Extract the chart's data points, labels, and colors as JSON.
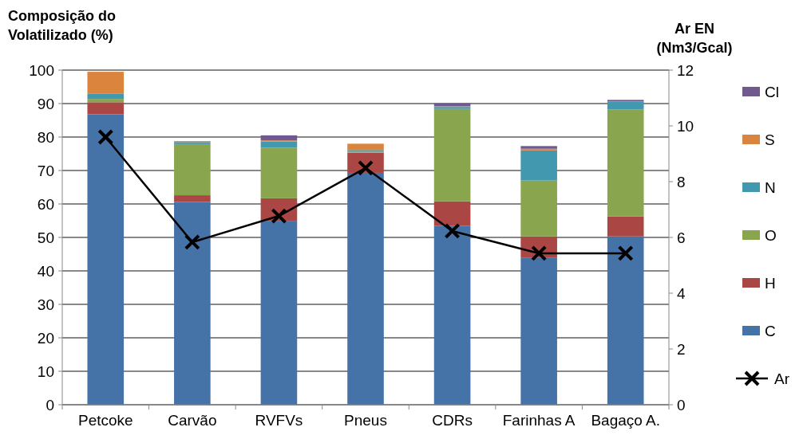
{
  "chart_data": {
    "type": "bar",
    "stacked": true,
    "ylabel": "Composição do Volatilizado (%)",
    "y2label": "Ar EN (Nm3/Gcal)",
    "categories": [
      "Petcoke",
      "Carvão",
      "RVFVs",
      "Pneus",
      "CDRs",
      "Farinhas A",
      "Bagaço A."
    ],
    "ylim": [
      0,
      100
    ],
    "yticks": [
      0,
      10,
      20,
      30,
      40,
      50,
      60,
      70,
      80,
      90,
      100
    ],
    "y2lim": [
      0,
      12
    ],
    "y2ticks": [
      0,
      2,
      4,
      6,
      8,
      10,
      12
    ],
    "grid": "y",
    "legend": "right",
    "series": [
      {
        "name": "C",
        "color": "#4572a7",
        "values": [
          86.8,
          60.6,
          54.8,
          69.3,
          53.5,
          44.0,
          50.3
        ]
      },
      {
        "name": "H",
        "color": "#aa4643",
        "values": [
          3.6,
          2.0,
          6.9,
          6.0,
          7.3,
          6.3,
          6.0
        ]
      },
      {
        "name": "O",
        "color": "#89a54e",
        "values": [
          1.0,
          15.3,
          15.1,
          0.3,
          27.6,
          16.7,
          31.9
        ]
      },
      {
        "name": "N",
        "color": "#4198af",
        "values": [
          1.5,
          0.6,
          1.9,
          0.5,
          0.6,
          9.0,
          2.3
        ]
      },
      {
        "name": "S",
        "color": "#db843d",
        "values": [
          6.6,
          0.2,
          0.3,
          1.9,
          0.2,
          0.5,
          0.1
        ]
      },
      {
        "name": "Cl",
        "color": "#71588f",
        "values": [
          0.0,
          0.1,
          1.5,
          0.0,
          0.9,
          0.8,
          0.5
        ]
      },
      {
        "name": "Ar",
        "type": "line",
        "axis": "y2",
        "color": "#000000",
        "marker": "cross",
        "values": [
          9.6,
          5.83,
          6.77,
          8.49,
          6.23,
          5.43,
          5.43
        ]
      }
    ]
  }
}
